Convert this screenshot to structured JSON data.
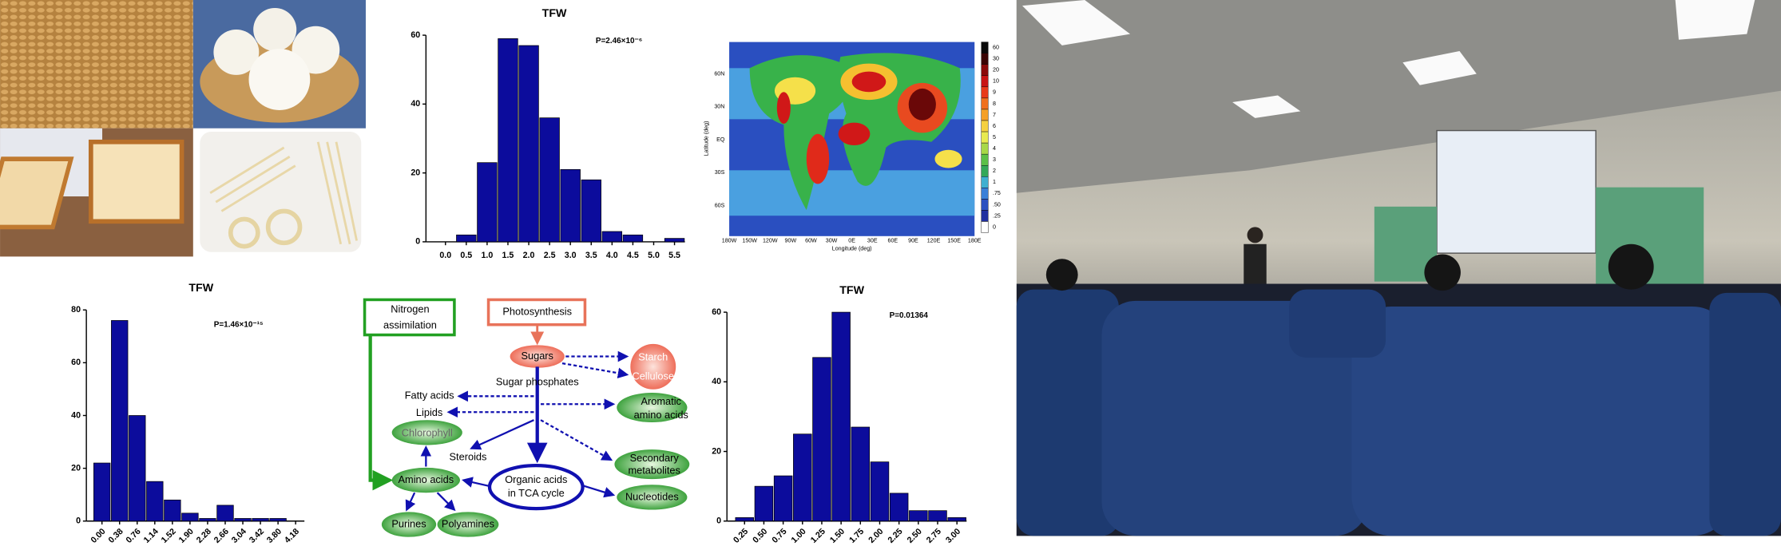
{
  "chart_data": [
    {
      "type": "bar",
      "title": "TFW",
      "annotation": "P=2.46×10⁻⁶",
      "categories": [
        "0.0",
        "0.5",
        "1.0",
        "1.5",
        "2.0",
        "2.5",
        "3.0",
        "3.5",
        "4.0",
        "4.5",
        "5.0",
        "5.5"
      ],
      "values": [
        0,
        2,
        23,
        59,
        57,
        36,
        21,
        18,
        3,
        2,
        0,
        1
      ],
      "color": "#0c0c9c",
      "ylim": [
        0,
        60
      ],
      "yticks": [
        0,
        20,
        40,
        60
      ]
    },
    {
      "type": "bar",
      "title": "TFW",
      "annotation": "P=1.46×10⁻¹⁵",
      "categories": [
        "0.00",
        "0.38",
        "0.76",
        "1.14",
        "1.52",
        "1.90",
        "2.28",
        "2.66",
        "3.04",
        "3.42",
        "3.80",
        "4.18"
      ],
      "values": [
        22,
        76,
        40,
        15,
        8,
        3,
        1,
        6,
        1,
        1,
        1,
        0
      ],
      "color": "#0c0c9c",
      "ylim": [
        0,
        80
      ],
      "yticks": [
        0,
        20,
        40,
        60,
        80
      ]
    },
    {
      "type": "bar",
      "title": "TFW",
      "annotation": "P=0.01364",
      "categories": [
        "0.25",
        "0.50",
        "0.75",
        "1.00",
        "1.25",
        "1.50",
        "1.75",
        "2.00",
        "2.25",
        "2.50",
        "2.75",
        "3.00"
      ],
      "values": [
        1,
        10,
        13,
        25,
        47,
        60,
        27,
        17,
        8,
        3,
        3,
        1
      ],
      "color": "#0c0c9c",
      "ylim": [
        0,
        60
      ],
      "yticks": [
        0,
        20,
        40,
        60
      ]
    }
  ],
  "map": {
    "y_label": "Latitude (deg)",
    "x_label": "Longitude (deg)",
    "lat_ticks": [
      "60N",
      "30N",
      "EQ",
      "30S",
      "60S"
    ],
    "lon_ticks": [
      "180W",
      "150W",
      "120W",
      "90W",
      "60W",
      "30W",
      "0E",
      "30E",
      "60E",
      "90E",
      "120E",
      "150E",
      "180E"
    ],
    "colorbar_ticks": [
      "60",
      "30",
      "20",
      "10",
      "9",
      "8",
      "7",
      "6",
      "5",
      "4",
      "3",
      "2",
      "1",
      ".75",
      ".50",
      ".25",
      "0"
    ]
  },
  "diagram": {
    "nodes": [
      {
        "lines": [
          "Nitrogen",
          "assimilation"
        ]
      },
      {
        "lines": [
          "Photosynthesis"
        ]
      },
      {
        "lines": [
          "Sugars"
        ]
      },
      {
        "lines": [
          "Starch",
          "Cellulose"
        ]
      },
      {
        "lines": [
          "Sugar phosphates"
        ]
      },
      {
        "lines": [
          "Fatty acids"
        ]
      },
      {
        "lines": [
          "Lipids"
        ]
      },
      {
        "lines": [
          "Aromatic",
          "amino acids"
        ]
      },
      {
        "lines": [
          "Chlorophyll"
        ]
      },
      {
        "lines": [
          "Steroids"
        ]
      },
      {
        "lines": [
          "Secondary",
          "metabolites"
        ]
      },
      {
        "lines": [
          "Amino acids"
        ]
      },
      {
        "lines": [
          "Organic acids",
          "in TCA cycle"
        ]
      },
      {
        "lines": [
          "Nucleotides"
        ]
      },
      {
        "lines": [
          "Purines"
        ]
      },
      {
        "lines": [
          "Polyamines"
        ]
      }
    ]
  }
}
